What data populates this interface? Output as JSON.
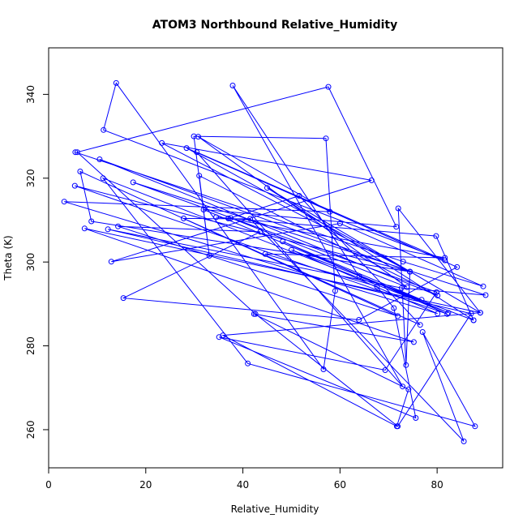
{
  "chart_data": {
    "type": "scatter",
    "title": "ATOM3 Northbound Relative_Humidity",
    "xlabel": "Relative_Humidity",
    "ylabel": "Theta (K)",
    "xlim": [
      0,
      93.5
    ],
    "ylim": [
      250.9,
      351.1
    ],
    "xticks": [
      0,
      20,
      40,
      60,
      80
    ],
    "yticks": [
      260,
      280,
      300,
      320,
      340
    ],
    "grid": false,
    "connected_points": true,
    "series": [
      {
        "color": "#0000ff",
        "points": [
          [
            5.5,
            326.2
          ],
          [
            73.0,
            300.1
          ],
          [
            89.5,
            294.2
          ],
          [
            60.0,
            309.2
          ],
          [
            12.9,
            300.1
          ],
          [
            66.5,
            319.5
          ],
          [
            23.3,
            328.4
          ],
          [
            74.4,
            297.7
          ],
          [
            8.8,
            309.7
          ],
          [
            6.5,
            321.6
          ],
          [
            71.9,
            287.1
          ],
          [
            14.3,
            308.5
          ],
          [
            43.6,
            307.2
          ],
          [
            15.4,
            291.4
          ],
          [
            63.9,
            286.2
          ],
          [
            84.1,
            298.8
          ],
          [
            28.4,
            327.2
          ],
          [
            74.4,
            297.7
          ],
          [
            10.5,
            324.5
          ],
          [
            80.1,
            292.0
          ],
          [
            31.0,
            320.6
          ],
          [
            33.1,
            301.5
          ],
          [
            29.9,
            330.0
          ],
          [
            57.1,
            329.5
          ],
          [
            59.0,
            293.1
          ],
          [
            56.6,
            274.4
          ],
          [
            13.9,
            342.7
          ],
          [
            11.3,
            331.5
          ],
          [
            81.6,
            300.4
          ],
          [
            30.5,
            326.2
          ],
          [
            72.9,
            270.3
          ],
          [
            37.9,
            342.1
          ],
          [
            64.0,
            296.5
          ],
          [
            87.5,
            286.1
          ],
          [
            45.0,
            317.7
          ],
          [
            88.9,
            287.9
          ],
          [
            35.9,
            282.5
          ],
          [
            71.7,
            260.8
          ],
          [
            74.1,
            269.6
          ],
          [
            42.3,
            287.6
          ],
          [
            75.2,
            280.9
          ],
          [
            7.4,
            308.0
          ],
          [
            88.9,
            287.9
          ],
          [
            72.0,
            312.8
          ],
          [
            73.6,
            275.4
          ],
          [
            74.4,
            297.7
          ],
          [
            5.4,
            318.2
          ],
          [
            82.1,
            287.6
          ],
          [
            48.2,
            304.9
          ],
          [
            76.8,
            291.0
          ],
          [
            50.0,
            302.9
          ],
          [
            80.1,
            287.7
          ],
          [
            3.2,
            314.4
          ],
          [
            57.9,
            312.0
          ],
          [
            30.8,
            329.9
          ],
          [
            73.8,
            294.0
          ],
          [
            37.5,
            310.5
          ],
          [
            51.6,
            315.8
          ],
          [
            76.5,
            285.0
          ],
          [
            27.8,
            310.4
          ],
          [
            41.5,
            310.3
          ],
          [
            85.5,
            257.2
          ],
          [
            77.0,
            283.3
          ],
          [
            87.8,
            260.8
          ],
          [
            41.0,
            275.8
          ],
          [
            11.2,
            320.0
          ],
          [
            82.3,
            287.9
          ],
          [
            31.9,
            312.5
          ],
          [
            71.6,
            308.4
          ],
          [
            57.6,
            341.8
          ],
          [
            5.9,
            326.2
          ],
          [
            42.6,
            287.6
          ],
          [
            71.9,
            260.8
          ],
          [
            87.0,
            287.7
          ],
          [
            12.2,
            307.8
          ],
          [
            72.7,
            293.8
          ],
          [
            90.0,
            292.1
          ],
          [
            17.4,
            319.0
          ],
          [
            79.9,
            292.8
          ],
          [
            69.3,
            274.2
          ],
          [
            35.1,
            282.1
          ],
          [
            75.6,
            262.8
          ],
          [
            71.1,
            289.0
          ],
          [
            67.6,
            294.2
          ],
          [
            44.6,
            301.9
          ],
          [
            81.6,
            301.0
          ],
          [
            37.0,
            310.4
          ],
          [
            34.5,
            310.7
          ],
          [
            79.8,
            306.2
          ],
          [
            87.5,
            286.1
          ]
        ]
      }
    ]
  }
}
